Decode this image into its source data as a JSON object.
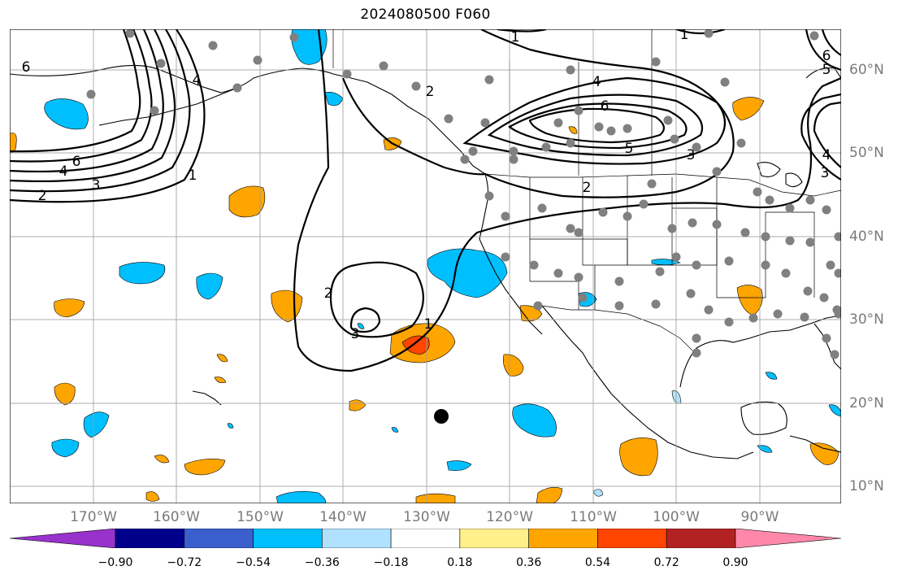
{
  "title": "2024080500 F060",
  "latitude_labels": [
    "60°N",
    "50°N",
    "40°N",
    "30°N",
    "20°N",
    "10°N"
  ],
  "longitude_labels": [
    "170°W",
    "160°W",
    "150°W",
    "140°W",
    "130°W",
    "120°W",
    "110°W",
    "100°W",
    "90°W"
  ],
  "contour_labels": [
    "1",
    "2",
    "3",
    "4",
    "5",
    "6"
  ],
  "colorbar": {
    "ticks": [
      "−0.90",
      "−0.72",
      "−0.54",
      "−0.36",
      "−0.18",
      "0.18",
      "0.36",
      "0.54",
      "0.72",
      "0.90"
    ],
    "colors": [
      "#9932cc",
      "#00008b",
      "#3a5fcd",
      "#00bfff",
      "#b0e2ff",
      "#ffffff",
      "#fff08c",
      "#ffa500",
      "#ff4500",
      "#b22222",
      "#ff88aa"
    ]
  },
  "colors": {
    "contour": "#000000",
    "grid": "#a0a0a0",
    "station": "#808080",
    "marker": "#000000"
  }
}
